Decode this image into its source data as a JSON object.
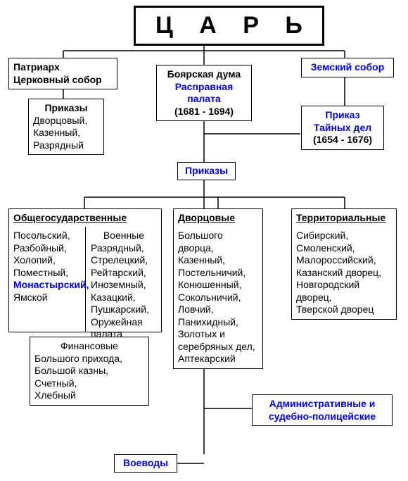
{
  "colors": {
    "black": "#000000",
    "blue": "#0000ee",
    "bg": "#ffffff"
  },
  "stroke_width": 1.5,
  "root": {
    "label": "Ц А Р Ь",
    "fontsize": 34
  },
  "left": {
    "patriarch": {
      "l1": "Патриарх",
      "l2": "Церковный собор"
    },
    "prikazy": {
      "title": "Приказы",
      "l1": "Дворцовый,",
      "l2": "Казенный,",
      "l3": "Разрядный"
    }
  },
  "center_col": {
    "duma": {
      "l1": "Боярская дума",
      "l2": "Расправная",
      "l3": "палата",
      "l4": "(1681 - 1694)"
    },
    "prikazy_label": "Приказы"
  },
  "right": {
    "zemsky": "Земский собор",
    "tainykh": {
      "l1": "Приказ",
      "l2": "Тайных дел",
      "l3": "(1654 - 1676)"
    }
  },
  "groups": {
    "g1": {
      "title": "Общегосударственные",
      "colA": [
        "Посольский,",
        "Разбойный,",
        "Холопий,",
        "Поместный,",
        "Монастырский,",
        "Ямской"
      ],
      "colA_blue_index": 4,
      "colB_title": "Военные",
      "colB": [
        "Разрядный,",
        "Стрелецкий,",
        "Рейтарский,",
        "Иноземный,",
        "Казацкий,",
        "Пушкарский,",
        "Оружейная",
        "палата"
      ],
      "fin_title": "Финансовые",
      "fin": [
        "Большого прихода,",
        "Большой казны,",
        "Счетный,",
        "Хлебный"
      ]
    },
    "g2": {
      "title": "Дворцовые",
      "items": [
        "Большого",
        "дворца,",
        "Казенный,",
        "Постельничий,",
        "Конюшенный,",
        "Сокольничий,",
        "Ловчий,",
        "Панихидный,",
        "Золотых и",
        "серебряных дел,",
        "Аптекарский"
      ]
    },
    "g3": {
      "title": "Территориальные",
      "items": [
        "Сибирский,",
        "Смоленский,",
        "Малороссийский,",
        "Казанский дворец,",
        "Новгородский",
        "дворец,",
        "Тверской дворец"
      ]
    }
  },
  "bottom": {
    "admin": {
      "l1": "Административные и",
      "l2": "судебно-полицейские"
    },
    "voevody": "Воеводы"
  }
}
